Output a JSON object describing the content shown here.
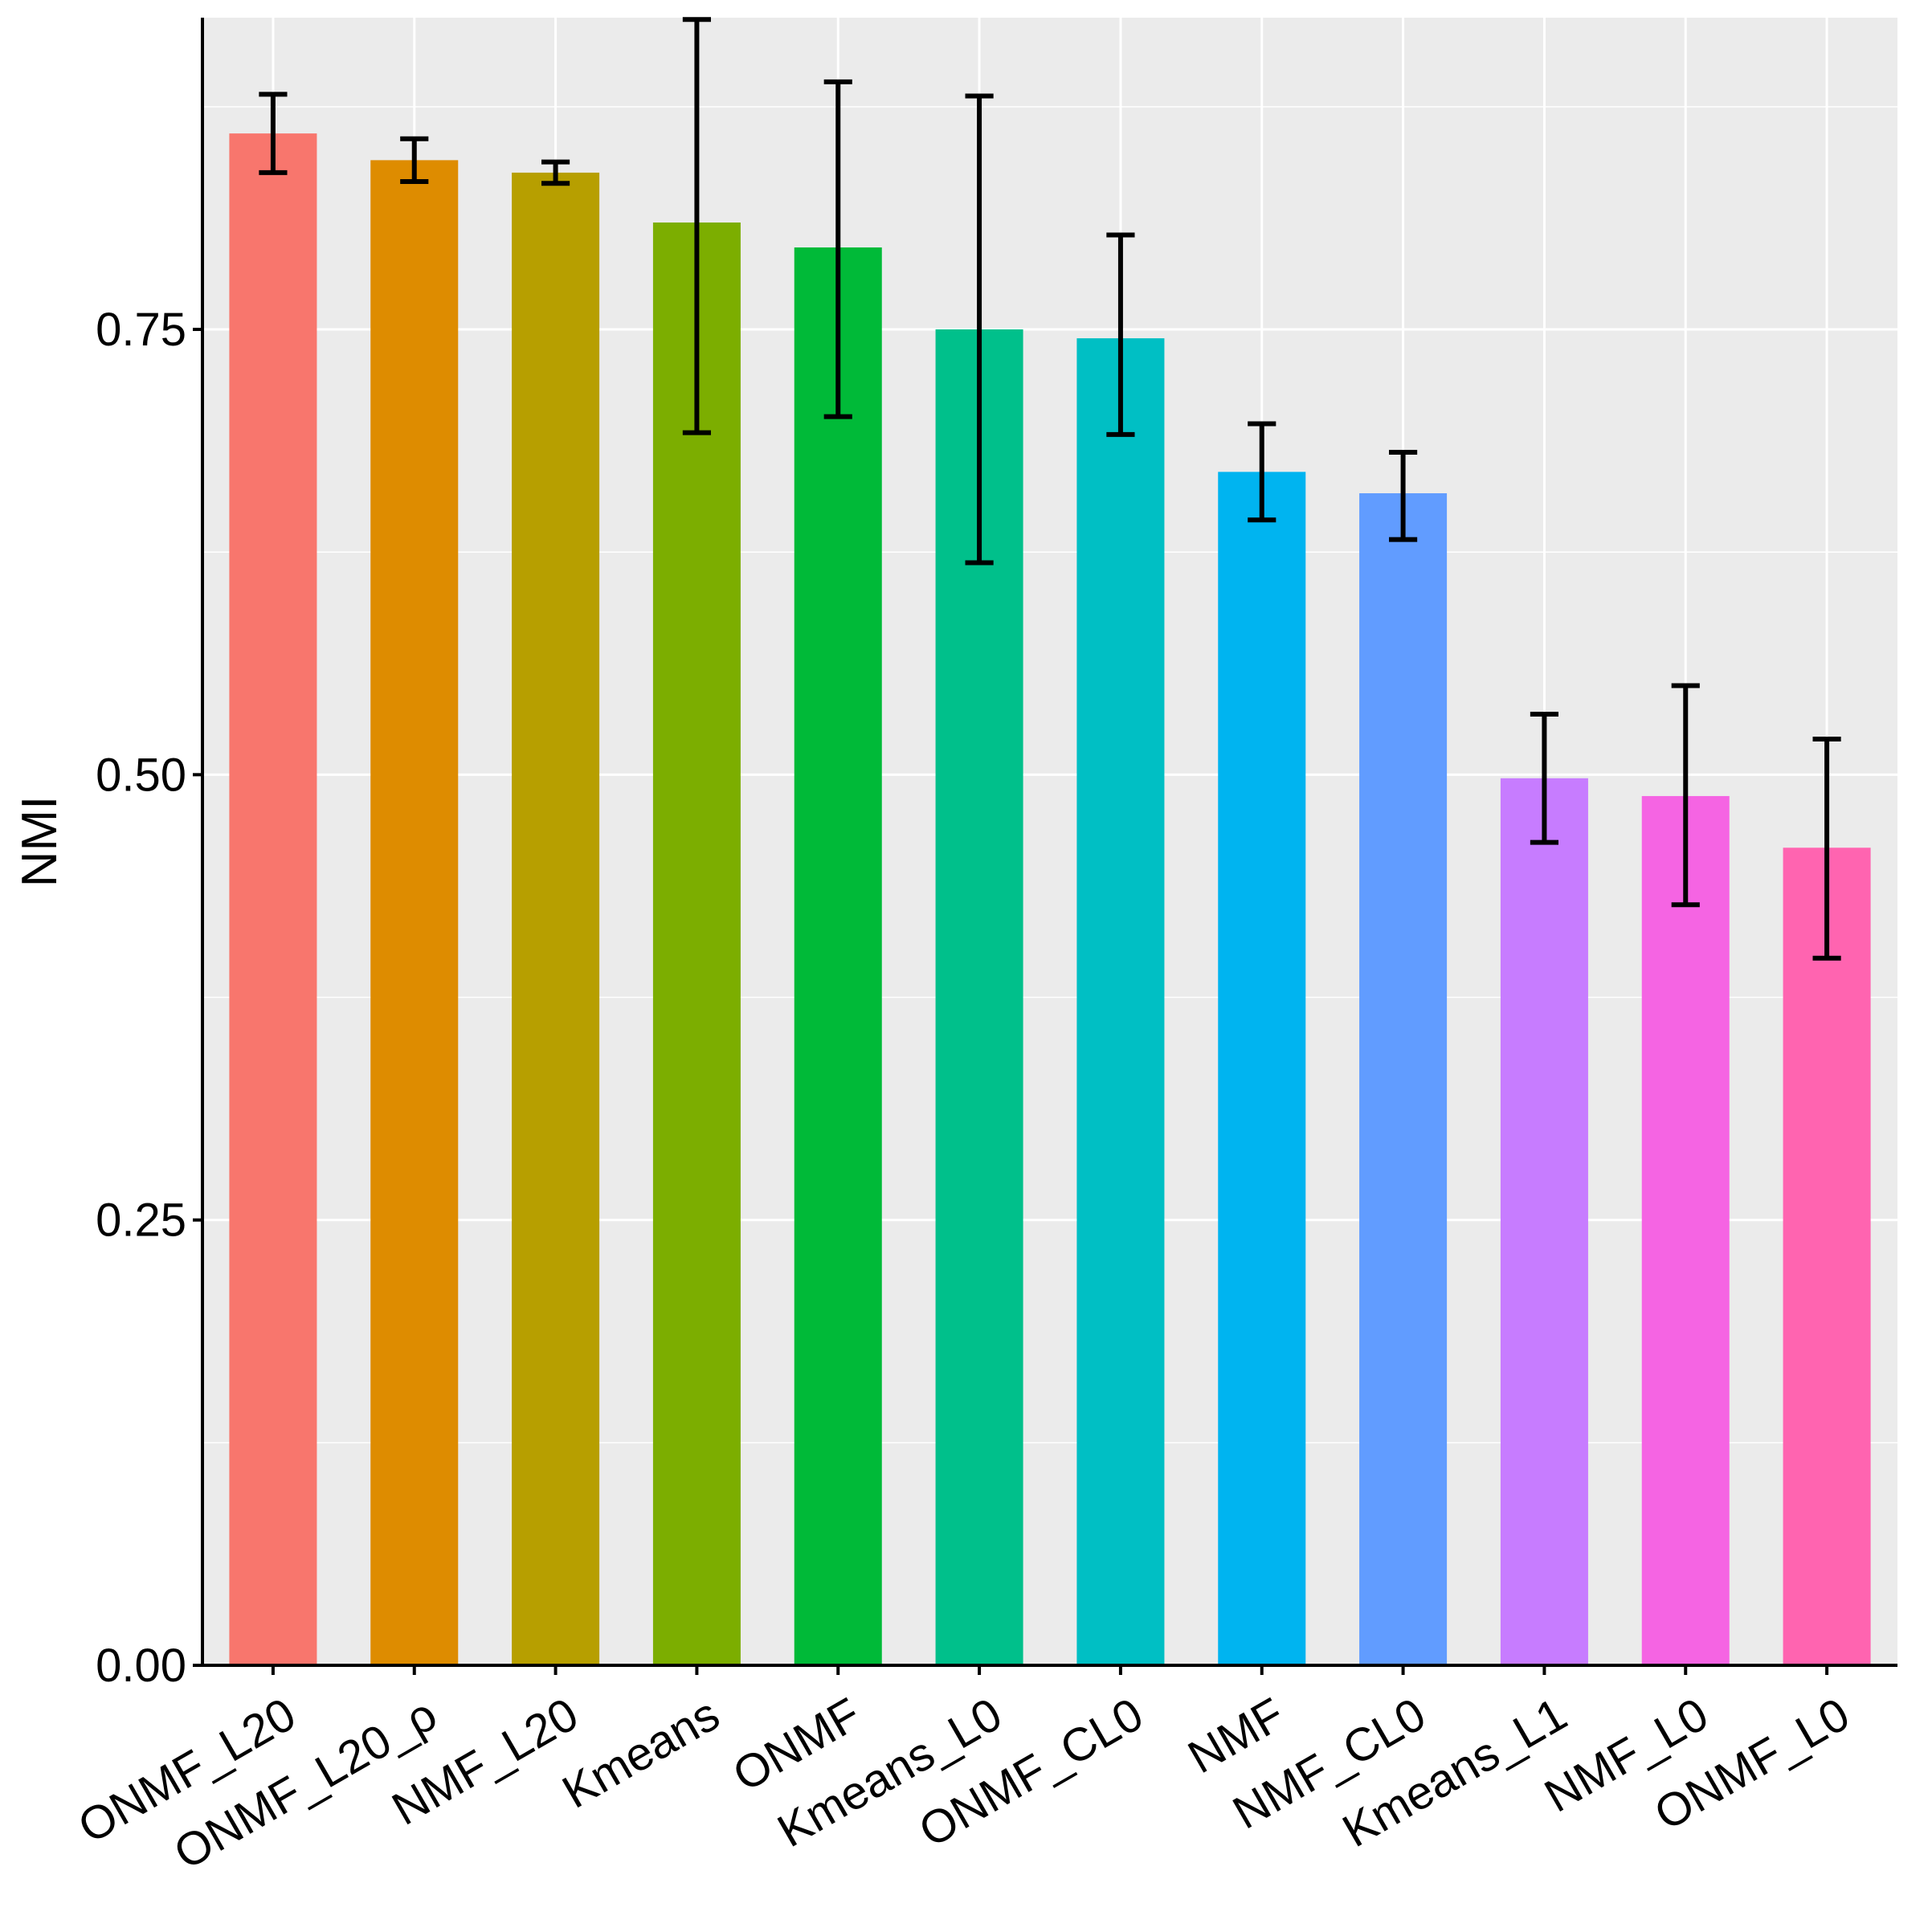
{
  "chart_data": {
    "type": "bar",
    "title": "",
    "xlabel": "",
    "ylabel": "NMI",
    "ylim": [
      0,
      0.925
    ],
    "y_ticks": [
      0.0,
      0.25,
      0.5,
      0.75
    ],
    "y_tick_labels": [
      "0.00",
      "0.25",
      "0.50",
      "0.75"
    ],
    "y_minor_gridlines": [
      0.125,
      0.375,
      0.625,
      0.875
    ],
    "grid": true,
    "legend": "none",
    "categories": [
      "ONMF_L20",
      "ONMF_L20_ρ",
      "NMF_L20",
      "Kmeans",
      "ONMF",
      "Kmeans_L0",
      "ONMF_CL0",
      "NMF",
      "NMF_CL0",
      "Kmeans_L1",
      "NMF_L0",
      "ONMF_L0"
    ],
    "values": [
      0.86,
      0.845,
      0.838,
      0.81,
      0.796,
      0.75,
      0.745,
      0.67,
      0.658,
      0.498,
      0.488,
      0.459
    ],
    "error_low": [
      0.838,
      0.833,
      0.832,
      0.692,
      0.701,
      0.619,
      0.691,
      0.643,
      0.632,
      0.462,
      0.427,
      0.397
    ],
    "error_high": [
      0.882,
      0.857,
      0.844,
      0.924,
      0.889,
      0.881,
      0.803,
      0.697,
      0.681,
      0.534,
      0.55,
      0.52
    ],
    "colors": [
      "#F8766D",
      "#DE8C00",
      "#B79F00",
      "#7CAE00",
      "#00BA38",
      "#00C08B",
      "#00BFC4",
      "#00B4F0",
      "#619CFF",
      "#C77CFF",
      "#F564E3",
      "#FF64B0"
    ]
  }
}
